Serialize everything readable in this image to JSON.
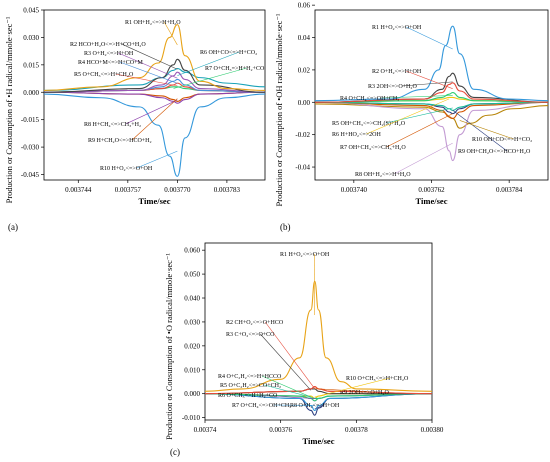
{
  "chart_data": [
    {
      "type": "line",
      "panel_label": "(a)",
      "xlabel": "Time/sec",
      "ylabel": "Production or Consumption of •H radical/mmole·sec⁻¹",
      "xlim": [
        0.003735,
        0.003793
      ],
      "ylim": [
        -0.048,
        0.045
      ],
      "xticks": [
        0.003744,
        0.003757,
        0.00377,
        0.003783
      ],
      "xtick_labels": [
        "0.003744",
        "0.003757",
        "0.003770",
        "0.003783"
      ],
      "yticks": [
        0.045,
        0.03,
        0.015,
        0.0,
        -0.015,
        -0.03,
        -0.045
      ],
      "ytick_labels": [
        "0.045",
        "0.030",
        "0.015",
        "0.000",
        "-0.015",
        "-0.030",
        "-0.045"
      ],
      "series": [
        {
          "name": "R1 OH+H₂<=>H+H₂O",
          "color": "#e8a317",
          "x": [
            0.003735,
            0.00375,
            0.00376,
            0.003765,
            0.003768,
            0.00377,
            0.003772,
            0.003776,
            0.003783,
            0.003793
          ],
          "y": [
            0.001,
            0.003,
            0.008,
            0.016,
            0.03,
            0.037,
            0.02,
            0.006,
            0.002,
            0.001
          ]
        },
        {
          "name": "R2 HCO+H₂O<=>H+CO+H₂O",
          "color": "#444444",
          "x": [
            0.003735,
            0.00376,
            0.003766,
            0.003769,
            0.00377,
            0.003772,
            0.003776,
            0.003793
          ],
          "y": [
            0.0,
            0.002,
            0.008,
            0.015,
            0.018,
            0.012,
            0.004,
            0.0
          ]
        },
        {
          "name": "R3 O+H₂<=>H+OH",
          "color": "#9b59b6",
          "x": [
            0.003735,
            0.00376,
            0.003766,
            0.003769,
            0.00377,
            0.003772,
            0.003776,
            0.003793
          ],
          "y": [
            0.0,
            0.001,
            0.004,
            0.009,
            0.011,
            0.007,
            0.002,
            0.0
          ]
        },
        {
          "name": "R4 HCO+M<=>H+CO+M",
          "color": "#4a90d9",
          "x": [
            0.003735,
            0.00376,
            0.003766,
            0.003769,
            0.00377,
            0.003772,
            0.003776,
            0.003793
          ],
          "y": [
            0.0,
            0.001,
            0.003,
            0.006,
            0.007,
            0.004,
            0.001,
            0.0
          ]
        },
        {
          "name": "R5 O+CH₃<=>H+CH₂O",
          "color": "#e74c3c",
          "x": [
            0.003735,
            0.00376,
            0.003766,
            0.003769,
            0.00377,
            0.003772,
            0.003776,
            0.003793
          ],
          "y": [
            0.0,
            0.001,
            0.002,
            0.004,
            0.005,
            0.003,
            0.001,
            0.0
          ]
        },
        {
          "name": "R6 OH+CO<=>H+CO₂",
          "color": "#1aa3b8",
          "x": [
            0.003735,
            0.00376,
            0.003766,
            0.003769,
            0.00377,
            0.003772,
            0.003776,
            0.003783,
            0.003793
          ],
          "y": [
            0.001,
            0.004,
            0.008,
            0.012,
            0.013,
            0.011,
            0.008,
            0.005,
            0.003
          ]
        },
        {
          "name": "R7 O+CH₃=>H+H₂+CO",
          "color": "#2ecc71",
          "x": [
            0.003735,
            0.00376,
            0.003766,
            0.003769,
            0.00377,
            0.003772,
            0.003776,
            0.003793
          ],
          "y": [
            0.0,
            0.001,
            0.002,
            0.003,
            0.003,
            0.002,
            0.001,
            0.0
          ]
        },
        {
          "name": "R8 H+CH₄<=>CH₃+H₂",
          "color": "#8e44ad",
          "x": [
            0.003735,
            0.00376,
            0.003766,
            0.003769,
            0.00377,
            0.003772,
            0.003776,
            0.003793
          ],
          "y": [
            0.0,
            -0.001,
            -0.003,
            -0.005,
            -0.006,
            -0.004,
            -0.001,
            0.0
          ]
        },
        {
          "name": "R9 H+CH₂O<=>HCO+H₂",
          "color": "#d35400",
          "x": [
            0.003735,
            0.00376,
            0.003766,
            0.003769,
            0.00377,
            0.003772,
            0.003776,
            0.003793
          ],
          "y": [
            0.0,
            -0.001,
            -0.002,
            -0.004,
            -0.005,
            -0.003,
            -0.001,
            0.0
          ]
        },
        {
          "name": "R10 H+O₂<=>O+OH",
          "color": "#3498db",
          "x": [
            0.003735,
            0.00375,
            0.00376,
            0.003765,
            0.003768,
            0.00377,
            0.003772,
            0.003776,
            0.003783,
            0.003793
          ],
          "y": [
            -0.001,
            -0.003,
            -0.008,
            -0.018,
            -0.035,
            -0.046,
            -0.025,
            -0.008,
            -0.003,
            -0.001
          ]
        }
      ]
    },
    {
      "type": "line",
      "panel_label": "(b)",
      "xlabel": "Time/sec",
      "ylabel": "Production or Consumption of •OH radical/mmole·sec⁻¹",
      "xlim": [
        0.003729,
        0.003795
      ],
      "ylim": [
        -0.048,
        0.057
      ],
      "xticks": [
        0.00374,
        0.003762,
        0.003784
      ],
      "xtick_labels": [
        "0.003740",
        "0.003762",
        "0.003784"
      ],
      "yticks": [
        0.06,
        0.04,
        0.02,
        0.0,
        -0.02,
        -0.04
      ],
      "ytick_labels": [
        "0.06",
        "0.04",
        "0.02",
        "0.00",
        "-0.02",
        "-0.04"
      ],
      "series": [
        {
          "name": "R1 H+O₂<=>O+OH",
          "color": "#3498db",
          "x": [
            0.003729,
            0.00375,
            0.00376,
            0.003764,
            0.003766,
            0.003768,
            0.00377,
            0.003774,
            0.003784,
            0.003795
          ],
          "y": [
            0.001,
            0.002,
            0.008,
            0.02,
            0.035,
            0.047,
            0.03,
            0.008,
            0.002,
            0.001
          ]
        },
        {
          "name": "R2 O+H₂<=>H+OH",
          "color": "#e74c3c",
          "x": [
            0.003729,
            0.00376,
            0.003765,
            0.003767,
            0.003768,
            0.00377,
            0.003774,
            0.003795
          ],
          "y": [
            0.0,
            0.002,
            0.006,
            0.011,
            0.012,
            0.007,
            0.002,
            0.0
          ]
        },
        {
          "name": "R3 2OH<=>O+H₂O",
          "color": "#444444",
          "x": [
            0.003729,
            0.00376,
            0.003765,
            0.003767,
            0.003768,
            0.00377,
            0.003774,
            0.003795
          ],
          "y": [
            0.0,
            0.002,
            0.008,
            0.016,
            0.018,
            0.01,
            0.003,
            0.0
          ]
        },
        {
          "name": "R4 O+CH₄<=>OH+CH₃",
          "color": "#2ecc71",
          "x": [
            0.003729,
            0.00376,
            0.003765,
            0.003767,
            0.003768,
            0.00377,
            0.003774,
            0.003795
          ],
          "y": [
            0.0,
            0.001,
            0.003,
            0.005,
            0.006,
            0.003,
            0.001,
            0.0
          ]
        },
        {
          "name": "R5 OH+CH₃<=>CH₂(S)+H₂O",
          "color": "#1abc9c",
          "x": [
            0.003729,
            0.00376,
            0.003765,
            0.003767,
            0.003768,
            0.00377,
            0.003774,
            0.003795
          ],
          "y": [
            0.0,
            -0.001,
            -0.002,
            -0.004,
            -0.005,
            -0.003,
            -0.001,
            0.0
          ]
        },
        {
          "name": "R6 H+HO₂<=>2OH",
          "color": "#f1c40f",
          "x": [
            0.003729,
            0.00376,
            0.003765,
            0.003767,
            0.003768,
            0.00377,
            0.003774,
            0.003795
          ],
          "y": [
            0.0,
            0.001,
            0.002,
            0.003,
            0.003,
            0.002,
            0.001,
            0.0
          ]
        },
        {
          "name": "R7 OH+CH₄<=>CH₃+H₂O",
          "color": "#d35400",
          "x": [
            0.003729,
            0.00376,
            0.003765,
            0.003767,
            0.003768,
            0.00377,
            0.003774,
            0.003795
          ],
          "y": [
            0.0,
            -0.002,
            -0.005,
            -0.009,
            -0.01,
            -0.006,
            -0.002,
            0.0
          ]
        },
        {
          "name": "R8 OH+H₂<=>H+H₂O",
          "color": "#c39bd3",
          "x": [
            0.003729,
            0.00376,
            0.003765,
            0.003767,
            0.003768,
            0.00377,
            0.003774,
            0.003795
          ],
          "y": [
            0.0,
            -0.004,
            -0.015,
            -0.03,
            -0.036,
            -0.02,
            -0.005,
            0.0
          ]
        },
        {
          "name": "R9 OH+CH₂O<=>HCO+H₂O",
          "color": "#2c3e80",
          "x": [
            0.003729,
            0.00376,
            0.003765,
            0.003767,
            0.003768,
            0.00377,
            0.003774,
            0.003795
          ],
          "y": [
            0.0,
            -0.001,
            -0.003,
            -0.006,
            -0.007,
            -0.004,
            -0.001,
            0.0
          ]
        },
        {
          "name": "R10 OH+CO<=>H+CO₂",
          "color": "#b8860b",
          "x": [
            0.003729,
            0.00376,
            0.003765,
            0.003768,
            0.00377,
            0.003773,
            0.003778,
            0.003785,
            0.003795
          ],
          "y": [
            -0.001,
            -0.003,
            -0.006,
            -0.01,
            -0.016,
            -0.013,
            -0.008,
            -0.004,
            -0.002
          ]
        }
      ]
    },
    {
      "type": "line",
      "panel_label": "(c)",
      "xlabel": "Time/sec",
      "ylabel": "Production or Consumption of •O radical/mmole·sec⁻¹",
      "xlim": [
        0.00374,
        0.0038
      ],
      "ylim": [
        -0.011,
        0.063
      ],
      "xticks": [
        0.00374,
        0.00376,
        0.00378,
        0.0038
      ],
      "xtick_labels": [
        "0.00374",
        "0.00376",
        "0.00378",
        "0.00380"
      ],
      "yticks": [
        0.06,
        0.05,
        0.04,
        0.03,
        0.02,
        0.01,
        0.0,
        -0.01
      ],
      "ytick_labels": [
        "0.060",
        "0.050",
        "0.040",
        "0.030",
        "0.020",
        "0.010",
        "0.000",
        "-0.010"
      ],
      "series": [
        {
          "name": "R1 H+O₂<=>O+OH",
          "color": "#e8a317",
          "x": [
            0.00374,
            0.00375,
            0.00376,
            0.003765,
            0.003768,
            0.003769,
            0.00377,
            0.003772,
            0.003776,
            0.00378,
            0.0038
          ],
          "y": [
            0.001,
            0.002,
            0.006,
            0.015,
            0.035,
            0.047,
            0.035,
            0.015,
            0.005,
            0.002,
            0.001
          ]
        },
        {
          "name": "R2 CH+O₂<=>O+HCO",
          "color": "#e74c3c",
          "x": [
            0.00374,
            0.003765,
            0.003768,
            0.003769,
            0.00377,
            0.003773,
            0.0038
          ],
          "y": [
            0.0,
            0.001,
            0.002,
            0.003,
            0.002,
            0.001,
            0.0
          ]
        },
        {
          "name": "R3 C+O₂<=>O+CO",
          "color": "#444444",
          "x": [
            0.00374,
            0.003765,
            0.003768,
            0.003769,
            0.00377,
            0.003773,
            0.0038
          ],
          "y": [
            0.0,
            0.001,
            0.002,
            0.002,
            0.001,
            0.0,
            0.0
          ]
        },
        {
          "name": "R4 O+C₂H₂<=>H+HCCO",
          "color": "#2ecc71",
          "x": [
            0.00374,
            0.003765,
            0.003768,
            0.003769,
            0.00377,
            0.003773,
            0.0038
          ],
          "y": [
            0.0,
            -0.001,
            -0.002,
            -0.003,
            -0.002,
            -0.001,
            0.0
          ]
        },
        {
          "name": "R5 O+C₂H₂<=>CO+CH₂",
          "color": "#1abc9c",
          "x": [
            0.00374,
            0.003765,
            0.003768,
            0.003769,
            0.00377,
            0.003773,
            0.0038
          ],
          "y": [
            0.0,
            -0.001,
            -0.002,
            -0.002,
            -0.002,
            -0.001,
            0.0
          ]
        },
        {
          "name": "R6 O+CH₃=>H+H₂+CO",
          "color": "#8e44ad",
          "x": [
            0.00374,
            0.003765,
            0.003768,
            0.003769,
            0.00377,
            0.003773,
            0.0038
          ],
          "y": [
            0.0,
            -0.001,
            -0.002,
            -0.003,
            -0.002,
            -0.001,
            0.0
          ]
        },
        {
          "name": "R7 O+CH₄<=>OH+CH₃",
          "color": "#3498db",
          "x": [
            0.00374,
            0.003765,
            0.003768,
            0.003769,
            0.00377,
            0.003773,
            0.0038
          ],
          "y": [
            0.0,
            -0.002,
            -0.005,
            -0.007,
            -0.005,
            -0.002,
            0.0
          ]
        },
        {
          "name": "R8 O+H₂<=>H+OH",
          "color": "#2c3e80",
          "x": [
            0.00374,
            0.003765,
            0.003768,
            0.003769,
            0.00377,
            0.003773,
            0.0038
          ],
          "y": [
            0.0,
            -0.002,
            -0.007,
            -0.009,
            -0.006,
            -0.002,
            0.0
          ]
        },
        {
          "name": "R9 2OH<=>O+H₂O",
          "color": "#d35400",
          "x": [
            0.00374,
            0.003765,
            0.003768,
            0.003769,
            0.00377,
            0.003773,
            0.0038
          ],
          "y": [
            0.0,
            0.001,
            0.002,
            0.003,
            0.002,
            0.001,
            0.0
          ]
        },
        {
          "name": "R10 O+CH₃<=>H+CH₂O",
          "color": "#f1c40f",
          "x": [
            0.00374,
            0.003765,
            0.003768,
            0.003769,
            0.00377,
            0.003773,
            0.0038
          ],
          "y": [
            0.0,
            -0.001,
            -0.001,
            -0.002,
            -0.001,
            0.0,
            0.0
          ]
        }
      ]
    }
  ]
}
